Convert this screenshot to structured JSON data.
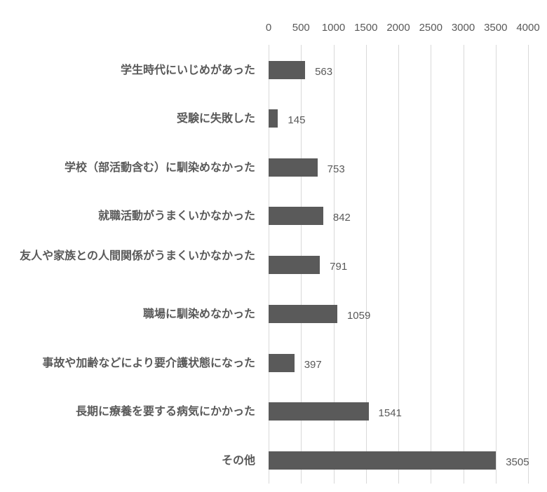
{
  "chart_data": {
    "type": "bar",
    "orientation": "horizontal",
    "title": "",
    "xlabel": "",
    "ylabel": "",
    "xlim": [
      0,
      4000
    ],
    "x_ticks": [
      "0",
      "500",
      "1000",
      "1500",
      "2000",
      "2500",
      "3000",
      "3500",
      "4000"
    ],
    "x_axis_position": "top",
    "grid": true,
    "legend": null,
    "bar_color": "#5a5a5a",
    "gridline_color": "#d9d9d9",
    "text_color": "#595959",
    "categories": [
      "学生時代にいじめがあった",
      "受験に失敗した",
      "学校（部活動含む）に馴染めなかった",
      "就職活動がうまくいかなかった",
      "友人や家族との人間関係がうまくいかなかった",
      "職場に馴染めなかった",
      "事故や加齢などにより要介護状態になった",
      "長期に療養を要する病気にかかった",
      "その他"
    ],
    "values": [
      563,
      145,
      753,
      842,
      791,
      1059,
      397,
      1541,
      3505
    ],
    "data_labels": [
      "563",
      "145",
      "753",
      "842",
      "791",
      "1059",
      "397",
      "1541",
      "3505"
    ]
  },
  "display": {
    "rows": [
      {
        "label": "学生時代にいじめがあった",
        "value": "563"
      },
      {
        "label": "受験に失敗した",
        "value": "145"
      },
      {
        "label": "学校（部活動含む）に馴染めなかった",
        "value": "753"
      },
      {
        "label": "就職活動がうまくいかなかった",
        "value": "842"
      },
      {
        "label": "友人や家族との人間関係がうまくいかなかった",
        "value": "791"
      },
      {
        "label": "職場に馴染めなかった",
        "value": "1059"
      },
      {
        "label": "事故や加齢などにより要介護状態になった",
        "value": "397"
      },
      {
        "label": "長期に療養を要する病気にかかった",
        "value": "1541"
      },
      {
        "label": "その他",
        "value": "3505"
      }
    ]
  }
}
